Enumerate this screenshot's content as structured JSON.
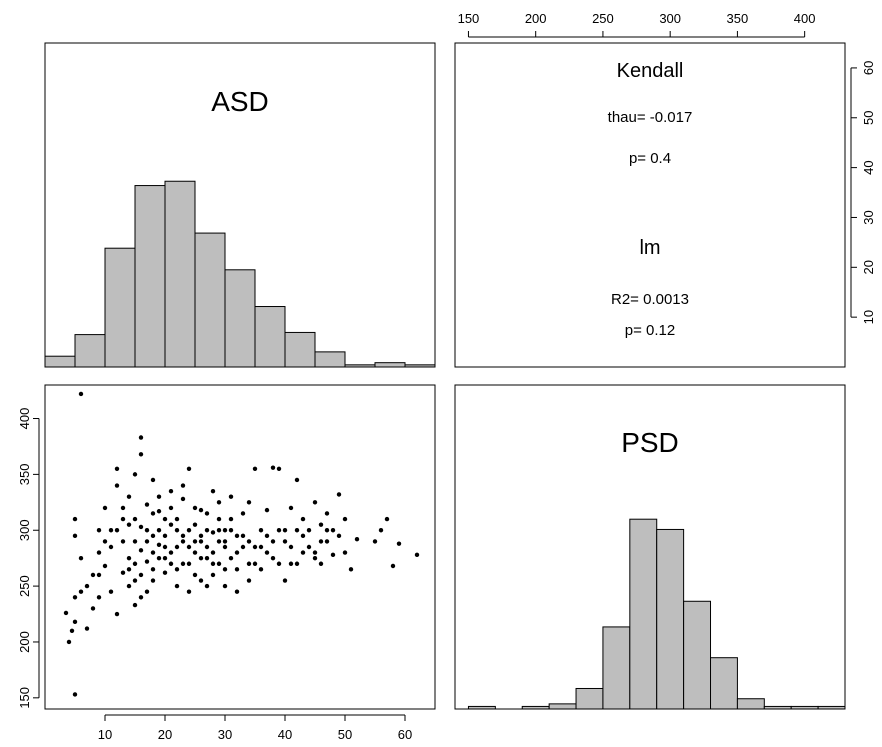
{
  "chart_data": [
    {
      "type": "histogram",
      "variable": "ASD",
      "title": "ASD",
      "bin_edges": [
        0,
        5,
        10,
        15,
        20,
        25,
        30,
        35,
        40,
        45,
        50,
        55,
        60,
        65
      ],
      "values": [
        2.5,
        7.5,
        27.5,
        42,
        43,
        31,
        22.5,
        14,
        8,
        3.5,
        0.5,
        1,
        0.5
      ],
      "xlim": [
        0,
        65
      ],
      "ylim": [
        0,
        60
      ]
    },
    {
      "type": "text",
      "title": "Kendall",
      "lines": [
        "thau= -0.017",
        "p= 0.4"
      ]
    },
    {
      "type": "text",
      "title": "lm",
      "lines": [
        "R2= 0.0013",
        "p= 0.12"
      ]
    },
    {
      "type": "scatter",
      "x_variable": "ASD",
      "y_variable": "PSD",
      "xlim": [
        0,
        65
      ],
      "ylim": [
        140,
        430
      ],
      "x_ticks": [
        "10",
        "20",
        "30",
        "40",
        "50",
        "60"
      ],
      "y_ticks": [
        "150",
        "200",
        "250",
        "300",
        "350",
        "400"
      ],
      "points": [
        [
          6,
          422
        ],
        [
          5,
          153
        ],
        [
          16,
          383
        ],
        [
          4,
          200
        ],
        [
          4.5,
          210
        ],
        [
          5,
          218
        ],
        [
          3.5,
          226
        ],
        [
          5,
          240
        ],
        [
          6,
          245
        ],
        [
          5,
          310
        ],
        [
          5,
          295
        ],
        [
          8,
          230
        ],
        [
          7,
          212
        ],
        [
          9,
          260
        ],
        [
          9,
          280
        ],
        [
          9,
          300
        ],
        [
          10,
          268
        ],
        [
          10,
          320
        ],
        [
          11,
          245
        ],
        [
          11,
          300
        ],
        [
          12,
          340
        ],
        [
          12,
          355
        ],
        [
          12,
          225
        ],
        [
          13,
          262
        ],
        [
          13,
          310
        ],
        [
          14,
          275
        ],
        [
          14,
          330
        ],
        [
          15,
          233
        ],
        [
          15,
          290
        ],
        [
          15,
          350
        ],
        [
          16,
          303
        ],
        [
          16,
          368
        ],
        [
          17,
          272
        ],
        [
          17,
          323
        ],
        [
          18,
          255
        ],
        [
          18,
          295
        ],
        [
          18,
          345
        ],
        [
          19,
          287
        ],
        [
          19,
          317
        ],
        [
          20,
          262
        ],
        [
          20,
          310
        ],
        [
          21,
          280
        ],
        [
          21,
          335
        ],
        [
          22,
          250
        ],
        [
          22,
          300
        ],
        [
          23,
          328
        ],
        [
          23,
          270
        ],
        [
          24,
          285
        ],
        [
          24,
          355
        ],
        [
          25,
          260
        ],
        [
          25,
          305
        ],
        [
          26,
          290
        ],
        [
          26,
          318
        ],
        [
          27,
          250
        ],
        [
          27,
          275
        ],
        [
          28,
          298
        ],
        [
          28,
          335
        ],
        [
          29,
          270
        ],
        [
          29,
          310
        ],
        [
          30,
          265
        ],
        [
          30,
          285
        ],
        [
          31,
          300
        ],
        [
          31,
          330
        ],
        [
          32,
          245
        ],
        [
          32,
          280
        ],
        [
          33,
          295
        ],
        [
          33,
          315
        ],
        [
          34,
          270
        ],
        [
          34,
          325
        ],
        [
          35,
          355
        ],
        [
          35,
          285
        ],
        [
          36,
          265
        ],
        [
          36,
          300
        ],
        [
          37,
          280
        ],
        [
          37,
          318
        ],
        [
          38,
          356
        ],
        [
          38,
          290
        ],
        [
          39,
          270
        ],
        [
          39,
          355
        ],
        [
          40,
          300
        ],
        [
          40,
          255
        ],
        [
          41,
          285
        ],
        [
          41,
          320
        ],
        [
          42,
          270
        ],
        [
          42,
          345
        ],
        [
          43,
          310
        ],
        [
          43,
          280
        ],
        [
          44,
          300
        ],
        [
          45,
          275
        ],
        [
          45,
          325
        ],
        [
          46,
          305
        ],
        [
          46,
          270
        ],
        [
          47,
          290
        ],
        [
          47,
          315
        ],
        [
          48,
          278
        ],
        [
          49,
          295
        ],
        [
          49,
          332
        ],
        [
          50,
          280
        ],
        [
          50,
          310
        ],
        [
          51,
          265
        ],
        [
          52,
          292
        ],
        [
          55,
          290
        ],
        [
          56,
          300
        ],
        [
          57,
          310
        ],
        [
          58,
          268
        ],
        [
          59,
          288
        ],
        [
          62,
          278
        ],
        [
          13,
          290
        ],
        [
          14,
          305
        ],
        [
          15,
          270
        ],
        [
          16,
          282
        ],
        [
          17,
          300
        ],
        [
          18,
          315
        ],
        [
          19,
          275
        ],
        [
          20,
          295
        ],
        [
          21,
          305
        ],
        [
          22,
          285
        ],
        [
          23,
          295
        ],
        [
          24,
          270
        ],
        [
          25,
          290
        ],
        [
          26,
          275
        ],
        [
          27,
          300
        ],
        [
          28,
          280
        ],
        [
          29,
          290
        ],
        [
          30,
          300
        ],
        [
          31,
          275
        ],
        [
          32,
          295
        ],
        [
          33,
          285
        ],
        [
          34,
          290
        ],
        [
          12,
          300
        ],
        [
          13,
          320
        ],
        [
          14,
          250
        ],
        [
          15,
          310
        ],
        [
          16,
          260
        ],
        [
          17,
          290
        ],
        [
          18,
          280
        ],
        [
          19,
          300
        ],
        [
          20,
          285
        ],
        [
          21,
          270
        ],
        [
          22,
          310
        ],
        [
          23,
          290
        ],
        [
          24,
          300
        ],
        [
          25,
          280
        ],
        [
          26,
          295
        ],
        [
          27,
          285
        ],
        [
          28,
          270
        ],
        [
          29,
          300
        ],
        [
          30,
          290
        ],
        [
          22,
          265
        ],
        [
          20,
          275
        ],
        [
          18,
          265
        ],
        [
          17,
          245
        ],
        [
          16,
          240
        ],
        [
          15,
          255
        ],
        [
          14,
          265
        ],
        [
          19,
          330
        ],
        [
          21,
          320
        ],
        [
          23,
          340
        ],
        [
          25,
          320
        ],
        [
          27,
          315
        ],
        [
          29,
          325
        ],
        [
          31,
          310
        ],
        [
          36,
          285
        ],
        [
          38,
          275
        ],
        [
          40,
          290
        ],
        [
          42,
          300
        ],
        [
          44,
          285
        ],
        [
          46,
          290
        ],
        [
          48,
          300
        ],
        [
          11,
          285
        ],
        [
          10,
          290
        ],
        [
          9,
          240
        ],
        [
          8,
          260
        ],
        [
          7,
          250
        ],
        [
          6,
          275
        ],
        [
          24,
          245
        ],
        [
          26,
          255
        ],
        [
          28,
          260
        ],
        [
          30,
          250
        ],
        [
          32,
          265
        ],
        [
          34,
          255
        ],
        [
          35,
          270
        ],
        [
          37,
          295
        ],
        [
          39,
          300
        ],
        [
          41,
          270
        ],
        [
          43,
          295
        ],
        [
          45,
          280
        ],
        [
          47,
          300
        ]
      ]
    },
    {
      "type": "histogram",
      "variable": "PSD",
      "title": "PSD",
      "bin_edges": [
        150,
        170,
        190,
        210,
        230,
        250,
        270,
        290,
        310,
        330,
        350,
        370,
        390,
        410,
        430
      ],
      "values": [
        0.5,
        0,
        0.5,
        1,
        4,
        16,
        37,
        35,
        21,
        10,
        2,
        0.5,
        0.5,
        0.5
      ],
      "xlim": [
        140,
        430
      ],
      "ylim": [
        0,
        60
      ],
      "x_ticks": [
        "150",
        "200",
        "250",
        "300",
        "350",
        "400"
      ],
      "y_ticks": [
        "10",
        "20",
        "30",
        "40",
        "50",
        "60"
      ]
    }
  ],
  "colors": {
    "bar_fill": "#bebebe",
    "bar_stroke": "#000000",
    "point": "#000000",
    "frame": "#000000"
  }
}
